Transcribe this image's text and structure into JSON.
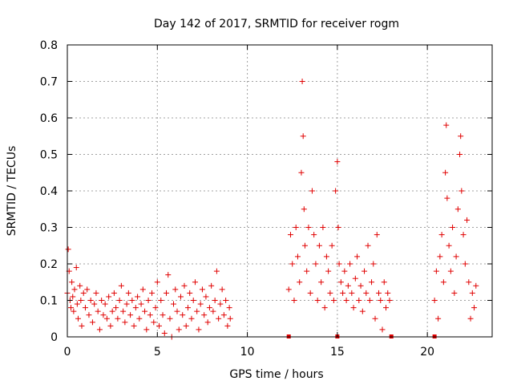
{
  "chart_data": {
    "type": "scatter",
    "title": "Day 142 of 2017, SRMTID for receiver rogm",
    "xlabel": "GPS time / hours",
    "ylabel": "SRMTID / TECUs",
    "xlim": [
      0,
      23.6
    ],
    "ylim": [
      0,
      0.8
    ],
    "x_ticks": [
      0,
      5,
      10,
      15,
      20
    ],
    "x_tick_labels": [
      "0",
      "5",
      "10",
      "15",
      "20"
    ],
    "y_ticks": [
      0,
      0.1,
      0.2,
      0.3,
      0.4,
      0.5,
      0.6,
      0.7,
      0.8
    ],
    "y_tick_labels": [
      "0",
      "0.1",
      "0.2",
      "0.3",
      "0.4",
      "0.5",
      "0.6",
      "0.7",
      "0.8"
    ],
    "grid": true,
    "marker": "+",
    "color": "#e00000",
    "series": [
      {
        "name": "SRMTID",
        "segments": [
          {
            "x_start": 0.0,
            "x_end": 9.1,
            "points": [
              [
                0.0,
                0.12
              ],
              [
                0.05,
                0.24
              ],
              [
                0.1,
                0.18
              ],
              [
                0.15,
                0.1
              ],
              [
                0.2,
                0.08
              ],
              [
                0.25,
                0.15
              ],
              [
                0.3,
                0.11
              ],
              [
                0.35,
                0.07
              ],
              [
                0.4,
                0.13
              ],
              [
                0.5,
                0.19
              ],
              [
                0.55,
                0.09
              ],
              [
                0.6,
                0.05
              ],
              [
                0.7,
                0.14
              ],
              [
                0.75,
                0.1
              ],
              [
                0.8,
                0.03
              ],
              [
                0.9,
                0.12
              ],
              [
                1.0,
                0.08
              ],
              [
                1.1,
                0.13
              ],
              [
                1.2,
                0.06
              ],
              [
                1.3,
                0.1
              ],
              [
                1.4,
                0.04
              ],
              [
                1.5,
                0.09
              ],
              [
                1.6,
                0.12
              ],
              [
                1.7,
                0.07
              ],
              [
                1.8,
                0.02
              ],
              [
                1.9,
                0.1
              ],
              [
                2.0,
                0.06
              ],
              [
                2.1,
                0.09
              ],
              [
                2.2,
                0.05
              ],
              [
                2.3,
                0.11
              ],
              [
                2.4,
                0.03
              ],
              [
                2.5,
                0.07
              ],
              [
                2.6,
                0.12
              ],
              [
                2.7,
                0.08
              ],
              [
                2.8,
                0.05
              ],
              [
                2.9,
                0.1
              ],
              [
                3.0,
                0.14
              ],
              [
                3.1,
                0.07
              ],
              [
                3.2,
                0.04
              ],
              [
                3.3,
                0.09
              ],
              [
                3.4,
                0.12
              ],
              [
                3.5,
                0.06
              ],
              [
                3.6,
                0.1
              ],
              [
                3.7,
                0.03
              ],
              [
                3.8,
                0.08
              ],
              [
                3.9,
                0.11
              ],
              [
                4.0,
                0.05
              ],
              [
                4.1,
                0.09
              ],
              [
                4.2,
                0.13
              ],
              [
                4.3,
                0.07
              ],
              [
                4.4,
                0.02
              ],
              [
                4.5,
                0.1
              ],
              [
                4.6,
                0.06
              ],
              [
                4.7,
                0.12
              ],
              [
                4.8,
                0.04
              ],
              [
                4.9,
                0.08
              ],
              [
                5.0,
                0.15
              ],
              [
                5.1,
                0.03
              ],
              [
                5.2,
                0.1
              ],
              [
                5.3,
                0.06
              ],
              [
                5.4,
                0.01
              ],
              [
                5.5,
                0.12
              ],
              [
                5.6,
                0.17
              ],
              [
                5.7,
                0.05
              ],
              [
                5.8,
                0.0
              ],
              [
                5.9,
                0.09
              ],
              [
                6.0,
                0.13
              ],
              [
                6.1,
                0.07
              ],
              [
                6.2,
                0.02
              ],
              [
                6.3,
                0.11
              ],
              [
                6.4,
                0.06
              ],
              [
                6.5,
                0.14
              ],
              [
                6.6,
                0.03
              ],
              [
                6.7,
                0.08
              ],
              [
                6.8,
                0.12
              ],
              [
                6.9,
                0.05
              ],
              [
                7.0,
                0.1
              ],
              [
                7.1,
                0.15
              ],
              [
                7.2,
                0.07
              ],
              [
                7.3,
                0.02
              ],
              [
                7.4,
                0.09
              ],
              [
                7.5,
                0.13
              ],
              [
                7.6,
                0.06
              ],
              [
                7.7,
                0.11
              ],
              [
                7.8,
                0.04
              ],
              [
                7.9,
                0.08
              ],
              [
                8.0,
                0.14
              ],
              [
                8.1,
                0.07
              ],
              [
                8.2,
                0.1
              ],
              [
                8.3,
                0.18
              ],
              [
                8.4,
                0.05
              ],
              [
                8.5,
                0.09
              ],
              [
                8.6,
                0.13
              ],
              [
                8.7,
                0.06
              ],
              [
                8.8,
                0.1
              ],
              [
                8.9,
                0.03
              ],
              [
                9.0,
                0.08
              ],
              [
                9.05,
                0.05
              ]
            ]
          },
          {
            "x_start": 12.3,
            "x_end": 18.0,
            "points": [
              [
                12.3,
                0.13
              ],
              [
                12.4,
                0.28
              ],
              [
                12.5,
                0.2
              ],
              [
                12.6,
                0.1
              ],
              [
                12.7,
                0.3
              ],
              [
                12.8,
                0.22
              ],
              [
                12.9,
                0.15
              ],
              [
                13.0,
                0.45
              ],
              [
                13.05,
                0.7
              ],
              [
                13.1,
                0.55
              ],
              [
                13.15,
                0.35
              ],
              [
                13.2,
                0.25
              ],
              [
                13.3,
                0.18
              ],
              [
                13.4,
                0.3
              ],
              [
                13.5,
                0.12
              ],
              [
                13.6,
                0.4
              ],
              [
                13.7,
                0.28
              ],
              [
                13.8,
                0.2
              ],
              [
                13.9,
                0.1
              ],
              [
                14.0,
                0.25
              ],
              [
                14.1,
                0.15
              ],
              [
                14.2,
                0.3
              ],
              [
                14.3,
                0.08
              ],
              [
                14.4,
                0.22
              ],
              [
                14.5,
                0.18
              ],
              [
                14.6,
                0.12
              ],
              [
                14.7,
                0.25
              ],
              [
                14.8,
                0.1
              ],
              [
                14.9,
                0.4
              ],
              [
                15.0,
                0.48
              ],
              [
                15.05,
                0.3
              ],
              [
                15.1,
                0.2
              ],
              [
                15.2,
                0.15
              ],
              [
                15.3,
                0.12
              ],
              [
                15.4,
                0.18
              ],
              [
                15.5,
                0.1
              ],
              [
                15.6,
                0.14
              ],
              [
                15.7,
                0.2
              ],
              [
                15.8,
                0.12
              ],
              [
                15.9,
                0.08
              ],
              [
                16.0,
                0.16
              ],
              [
                16.1,
                0.22
              ],
              [
                16.2,
                0.1
              ],
              [
                16.3,
                0.14
              ],
              [
                16.4,
                0.07
              ],
              [
                16.5,
                0.18
              ],
              [
                16.6,
                0.12
              ],
              [
                16.7,
                0.25
              ],
              [
                16.8,
                0.1
              ],
              [
                16.9,
                0.15
              ],
              [
                17.0,
                0.2
              ],
              [
                17.1,
                0.05
              ],
              [
                17.2,
                0.28
              ],
              [
                17.3,
                0.12
              ],
              [
                17.4,
                0.1
              ],
              [
                17.5,
                0.02
              ],
              [
                17.6,
                0.15
              ],
              [
                17.7,
                0.08
              ],
              [
                17.8,
                0.12
              ],
              [
                17.9,
                0.1
              ]
            ]
          },
          {
            "x_start": 20.4,
            "x_end": 22.8,
            "points": [
              [
                20.4,
                0.1
              ],
              [
                20.5,
                0.18
              ],
              [
                20.6,
                0.05
              ],
              [
                20.7,
                0.22
              ],
              [
                20.8,
                0.28
              ],
              [
                20.9,
                0.15
              ],
              [
                21.0,
                0.45
              ],
              [
                21.05,
                0.58
              ],
              [
                21.1,
                0.38
              ],
              [
                21.2,
                0.25
              ],
              [
                21.3,
                0.18
              ],
              [
                21.4,
                0.3
              ],
              [
                21.5,
                0.12
              ],
              [
                21.6,
                0.22
              ],
              [
                21.7,
                0.35
              ],
              [
                21.8,
                0.5
              ],
              [
                21.85,
                0.55
              ],
              [
                21.9,
                0.4
              ],
              [
                22.0,
                0.28
              ],
              [
                22.1,
                0.2
              ],
              [
                22.2,
                0.32
              ],
              [
                22.3,
                0.15
              ],
              [
                22.4,
                0.05
              ],
              [
                22.5,
                0.12
              ],
              [
                22.6,
                0.08
              ],
              [
                22.7,
                0.14
              ]
            ]
          }
        ]
      }
    ],
    "gap_markers_x": [
      12.3,
      15.0,
      18.0,
      20.4
    ]
  }
}
